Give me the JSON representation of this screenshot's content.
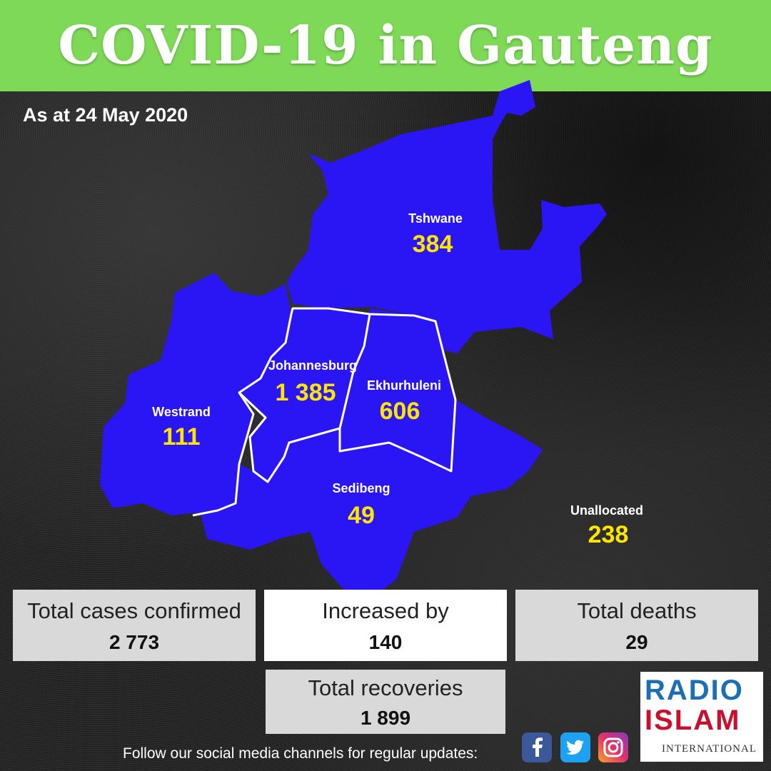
{
  "header": {
    "title": "COVID-19 in Gauteng"
  },
  "date_text": "As at 24 May 2020",
  "regions": [
    {
      "name": "Tshwane",
      "value": "384"
    },
    {
      "name": "Johannesburg",
      "value": "1 385"
    },
    {
      "name": "Ekhurhuleni",
      "value": "606"
    },
    {
      "name": "Westrand",
      "value": "111"
    },
    {
      "name": "Sedibeng",
      "value": "49"
    },
    {
      "name": "Unallocated",
      "value": "238"
    }
  ],
  "stats": {
    "total_cases": {
      "label": "Total cases confirmed",
      "value": "2 773"
    },
    "increased": {
      "label": "Increased by",
      "value": "140"
    },
    "deaths": {
      "label": "Total deaths",
      "value": "29"
    },
    "recoveries": {
      "label": "Total recoveries",
      "value": "1 899"
    }
  },
  "footer": {
    "follow_text": "Follow our social media channels for regular updates:",
    "social_icons": [
      "facebook-icon",
      "twitter-icon",
      "instagram-icon"
    ]
  },
  "logo": {
    "line1": "RADIO",
    "line2": "ISLAM",
    "line3": "INTERNATIONAL"
  },
  "colors": {
    "header": "#7ed957",
    "region_fill": "#2a16f5",
    "region_border": "#ffffff",
    "value_text": "#ffe600"
  }
}
